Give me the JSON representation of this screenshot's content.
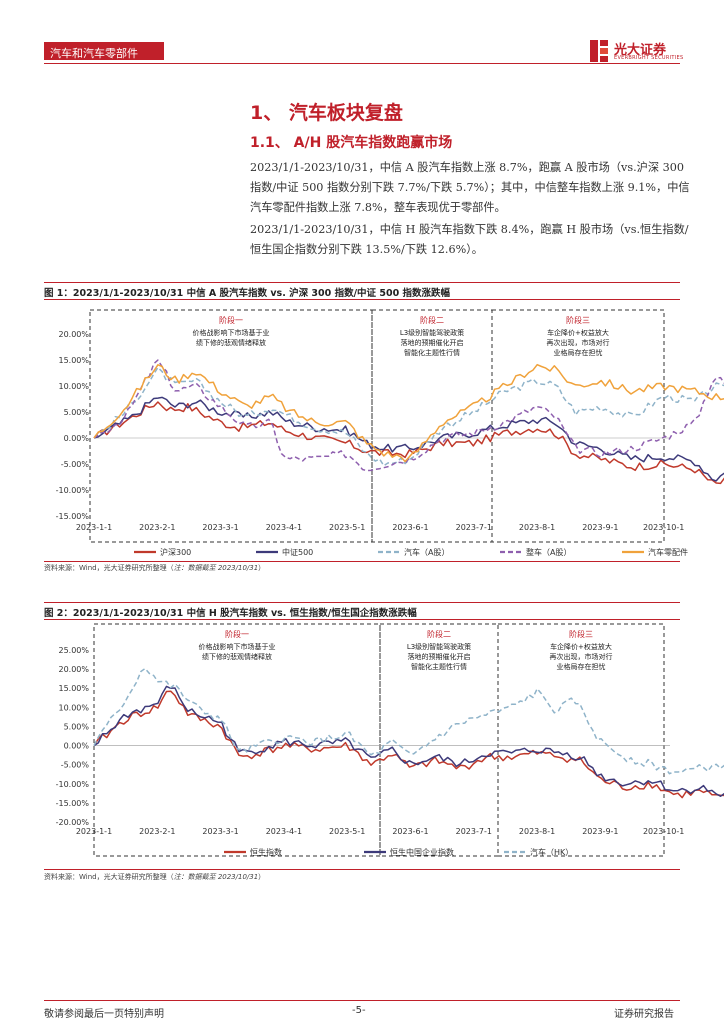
{
  "header": {
    "section_tag": "汽车和汽车零部件",
    "brand": "光大证券",
    "brand_sub": "EVERBRIGHT SECURITIES"
  },
  "heading1": "1、 汽车板块复盘",
  "heading2": "1.1、  A/H 股汽车指数跑赢市场",
  "paragraphs": [
    "2023/1/1-2023/10/31，中信 A 股汽车指数上涨 8.7%，跑赢 A 股市场（vs.沪深 300 指数/中证 500 指数分别下跌 7.7%/下跌 5.7%）；其中，中信整车指数上涨 9.1%，中信汽车零配件指数上涨 7.8%，整车表现优于零部件。",
    "2023/1/1-2023/10/31，中信 H 股汽车指数下跌 8.4%，跑赢 H 股市场（vs.恒生指数/恒生国企指数分别下跌 13.5%/下跌 12.6%）。"
  ],
  "fig1": {
    "title": "图 1：2023/1/1-2023/10/31 中信 A 股汽车指数 vs. 沪深 300 指数/中证 500 指数涨跌幅",
    "source": "资料来源：Wind，光大证券研究所整理（",
    "source_note": "注：数据截至 2023/10/31",
    "source_end": "）"
  },
  "fig2": {
    "title": "图 2：2023/1/1-2023/10/31 中信 H 股汽车指数 vs. 恒生指数/恒生国企指数涨跌幅",
    "source": "资料来源：Wind，光大证券研究所整理（",
    "source_note": "注：数据截至 2023/10/31",
    "source_end": "）"
  },
  "footer": {
    "left": "敬请参阅最后一页特别声明",
    "center": "-5-",
    "right": "证券研究报告"
  },
  "chart_data": [
    {
      "type": "line",
      "x_ticks": [
        "2023-1-1",
        "2023-2-1",
        "2023-3-1",
        "2023-4-1",
        "2023-5-1",
        "2023-6-1",
        "2023-7-1",
        "2023-8-1",
        "2023-9-1",
        "2023-10-1"
      ],
      "ylim": [
        -15,
        20
      ],
      "y_ticks": [
        "-15.00%",
        "-10.00%",
        "-5.00%",
        "0.00%",
        "5.00%",
        "10.00%",
        "15.00%",
        "20.00%"
      ],
      "stages": [
        {
          "title": "阶段一",
          "lines": [
            "价格战影响下市场基于业",
            "绩下修的悲观情绪释放"
          ]
        },
        {
          "title": "阶段二",
          "lines": [
            "L3级别智能驾驶政策",
            "落地的预期催化开启",
            "智能化主题性行情"
          ]
        },
        {
          "title": "阶段三",
          "lines": [
            "车企降价+权益放大",
            "再次出现，市场对行",
            "业格局存在担忧"
          ]
        }
      ],
      "legend": [
        "沪深300",
        "中证500",
        "汽车（A股）",
        "整车（A股）",
        "汽车零配件"
      ],
      "series": [
        {
          "name": "沪深300",
          "color": "#c0392b",
          "dash": "",
          "anchors": [
            [
              0,
              0
            ],
            [
              0.6,
              4
            ],
            [
              1.0,
              7
            ],
            [
              1.2,
              5.5
            ],
            [
              1.5,
              6
            ],
            [
              2.0,
              3
            ],
            [
              2.3,
              2
            ],
            [
              2.8,
              3
            ],
            [
              3.0,
              1.5
            ],
            [
              3.5,
              0
            ],
            [
              4.0,
              -1
            ],
            [
              4.3,
              -2.5
            ],
            [
              4.6,
              -3
            ],
            [
              5.0,
              -3
            ],
            [
              5.5,
              -1
            ],
            [
              6.0,
              -1
            ],
            [
              6.5,
              1
            ],
            [
              7.0,
              2
            ],
            [
              7.3,
              1
            ],
            [
              7.6,
              -3
            ],
            [
              8.0,
              -4
            ],
            [
              8.5,
              -5.5
            ],
            [
              9.0,
              -5
            ],
            [
              9.5,
              -6
            ],
            [
              9.8,
              -9
            ],
            [
              10.1,
              -7.7
            ]
          ]
        },
        {
          "name": "中证500",
          "color": "#3d3a7a",
          "dash": "",
          "anchors": [
            [
              0,
              0
            ],
            [
              0.6,
              4
            ],
            [
              1.0,
              8
            ],
            [
              1.3,
              6
            ],
            [
              1.6,
              7
            ],
            [
              2.0,
              5
            ],
            [
              2.4,
              4
            ],
            [
              2.8,
              5
            ],
            [
              3.1,
              3
            ],
            [
              3.5,
              2
            ],
            [
              4.0,
              1.5
            ],
            [
              4.3,
              -1
            ],
            [
              4.6,
              -2
            ],
            [
              5.0,
              -2
            ],
            [
              5.5,
              0
            ],
            [
              6.0,
              1
            ],
            [
              6.5,
              2.5
            ],
            [
              7.0,
              3.5
            ],
            [
              7.3,
              3
            ],
            [
              7.6,
              -1
            ],
            [
              8.0,
              -2
            ],
            [
              8.5,
              -4
            ],
            [
              9.0,
              -3.5
            ],
            [
              9.5,
              -4.5
            ],
            [
              9.8,
              -8
            ],
            [
              10.1,
              -5.7
            ]
          ]
        },
        {
          "name": "汽车（A股）",
          "color": "#8fb3c9",
          "dash": "5,3",
          "anchors": [
            [
              0,
              0
            ],
            [
              0.5,
              5
            ],
            [
              1.0,
              13
            ],
            [
              1.3,
              10
            ],
            [
              1.6,
              11
            ],
            [
              2.0,
              7
            ],
            [
              2.4,
              4
            ],
            [
              2.8,
              6
            ],
            [
              3.1,
              4
            ],
            [
              3.5,
              2
            ],
            [
              4.0,
              1
            ],
            [
              4.3,
              -3
            ],
            [
              4.6,
              -5
            ],
            [
              5.0,
              -4
            ],
            [
              5.5,
              2
            ],
            [
              6.0,
              5
            ],
            [
              6.5,
              9
            ],
            [
              7.0,
              11
            ],
            [
              7.3,
              10
            ],
            [
              7.6,
              5
            ],
            [
              8.0,
              6
            ],
            [
              8.5,
              4
            ],
            [
              9.0,
              8
            ],
            [
              9.5,
              7
            ],
            [
              9.8,
              10
            ],
            [
              10.1,
              8.7
            ]
          ]
        },
        {
          "name": "整车（A股）",
          "color": "#8e5fae",
          "dash": "5,3",
          "anchors": [
            [
              0,
              0
            ],
            [
              0.5,
              4
            ],
            [
              1.0,
              15
            ],
            [
              1.3,
              9
            ],
            [
              1.6,
              10
            ],
            [
              2.0,
              6
            ],
            [
              2.4,
              2
            ],
            [
              2.8,
              3
            ],
            [
              3.0,
              -4
            ],
            [
              3.5,
              -4
            ],
            [
              4.0,
              -3
            ],
            [
              4.3,
              -6
            ],
            [
              4.6,
              -5
            ],
            [
              5.0,
              -4
            ],
            [
              5.5,
              0
            ],
            [
              6.0,
              1
            ],
            [
              6.5,
              3
            ],
            [
              7.0,
              6
            ],
            [
              7.3,
              4
            ],
            [
              7.6,
              -2
            ],
            [
              8.0,
              -3
            ],
            [
              8.5,
              -2
            ],
            [
              9.0,
              0
            ],
            [
              9.5,
              3
            ],
            [
              9.8,
              12
            ],
            [
              10.1,
              9.1
            ]
          ]
        },
        {
          "name": "汽车零配件",
          "color": "#f0a23b",
          "dash": "",
          "anchors": [
            [
              0,
              0
            ],
            [
              0.5,
              6
            ],
            [
              1.0,
              14
            ],
            [
              1.3,
              11
            ],
            [
              1.6,
              13
            ],
            [
              2.0,
              9
            ],
            [
              2.4,
              6
            ],
            [
              2.8,
              8
            ],
            [
              3.1,
              5
            ],
            [
              3.5,
              3
            ],
            [
              4.0,
              3
            ],
            [
              4.3,
              -1
            ],
            [
              4.6,
              -3
            ],
            [
              5.0,
              -4
            ],
            [
              5.5,
              3
            ],
            [
              6.0,
              6
            ],
            [
              6.5,
              10
            ],
            [
              7.0,
              14
            ],
            [
              7.3,
              13
            ],
            [
              7.6,
              10
            ],
            [
              8.0,
              11
            ],
            [
              8.5,
              9
            ],
            [
              9.0,
              10
            ],
            [
              9.5,
              9
            ],
            [
              9.8,
              8
            ],
            [
              10.1,
              7.8
            ]
          ]
        }
      ]
    },
    {
      "type": "line",
      "x_ticks": [
        "2023-1-1",
        "2023-2-1",
        "2023-3-1",
        "2023-4-1",
        "2023-5-1",
        "2023-6-1",
        "2023-7-1",
        "2023-8-1",
        "2023-9-1",
        "2023-10-1"
      ],
      "ylim": [
        -20,
        25
      ],
      "y_ticks": [
        "-20.00%",
        "-15.00%",
        "-10.00%",
        "-5.00%",
        "0.00%",
        "5.00%",
        "10.00%",
        "15.00%",
        "20.00%",
        "25.00%"
      ],
      "stages": [
        {
          "title": "阶段一",
          "lines": [
            "价格战影响下市场基于业",
            "绩下修的悲观情绪释放"
          ]
        },
        {
          "title": "阶段二",
          "lines": [
            "L3级别智能驾驶政策",
            "落地的预期催化开启",
            "智能化主题性行情"
          ]
        },
        {
          "title": "阶段三",
          "lines": [
            "车企降价+权益放大",
            "再次出现，市场对行",
            "业格局存在担忧"
          ]
        }
      ],
      "legend": [
        "恒生指数",
        "恒生中国企业指数",
        "汽车（HK）"
      ],
      "series": [
        {
          "name": "恒生指数",
          "color": "#c0392b",
          "dash": "",
          "anchors": [
            [
              0,
              0
            ],
            [
              0.5,
              7
            ],
            [
              1.0,
              10
            ],
            [
              1.2,
              15
            ],
            [
              1.5,
              8
            ],
            [
              2.0,
              5
            ],
            [
              2.3,
              -3
            ],
            [
              2.6,
              -2
            ],
            [
              3.0,
              0
            ],
            [
              3.5,
              -1
            ],
            [
              4.0,
              0
            ],
            [
              4.4,
              -5
            ],
            [
              4.7,
              -2
            ],
            [
              5.0,
              -6
            ],
            [
              5.4,
              -4
            ],
            [
              5.8,
              -6
            ],
            [
              6.2,
              -3
            ],
            [
              6.6,
              -3
            ],
            [
              7.0,
              -2
            ],
            [
              7.4,
              -3
            ],
            [
              7.7,
              -4
            ],
            [
              8.0,
              -9
            ],
            [
              8.4,
              -11
            ],
            [
              8.8,
              -10
            ],
            [
              9.2,
              -13
            ],
            [
              9.6,
              -12
            ],
            [
              9.9,
              -14
            ],
            [
              10.1,
              -13.5
            ]
          ]
        },
        {
          "name": "恒生中国企业指数",
          "color": "#3d3a7a",
          "dash": "",
          "anchors": [
            [
              0,
              0
            ],
            [
              0.5,
              8
            ],
            [
              1.0,
              11
            ],
            [
              1.2,
              16
            ],
            [
              1.5,
              9
            ],
            [
              2.0,
              6
            ],
            [
              2.3,
              -2
            ],
            [
              2.6,
              -1
            ],
            [
              3.0,
              1
            ],
            [
              3.5,
              0
            ],
            [
              4.0,
              1
            ],
            [
              4.4,
              -4
            ],
            [
              4.7,
              -1
            ],
            [
              5.0,
              -5
            ],
            [
              5.4,
              -3
            ],
            [
              5.8,
              -5
            ],
            [
              6.2,
              -2
            ],
            [
              6.6,
              -2
            ],
            [
              7.0,
              -1
            ],
            [
              7.4,
              -2
            ],
            [
              7.7,
              -3
            ],
            [
              8.0,
              -8
            ],
            [
              8.4,
              -10
            ],
            [
              8.8,
              -9
            ],
            [
              9.2,
              -12
            ],
            [
              9.6,
              -11
            ],
            [
              9.9,
              -13
            ],
            [
              10.1,
              -12.6
            ]
          ]
        },
        {
          "name": "汽车（HK）",
          "color": "#8fb3c9",
          "dash": "5,3",
          "anchors": [
            [
              0,
              0
            ],
            [
              0.5,
              12
            ],
            [
              0.8,
              21
            ],
            [
              1.0,
              17
            ],
            [
              1.3,
              15
            ],
            [
              1.6,
              10
            ],
            [
              2.0,
              7
            ],
            [
              2.3,
              -2
            ],
            [
              2.6,
              0
            ],
            [
              3.0,
              2
            ],
            [
              3.5,
              1
            ],
            [
              4.0,
              3
            ],
            [
              4.4,
              -3
            ],
            [
              4.7,
              1
            ],
            [
              5.0,
              -3
            ],
            [
              5.4,
              2
            ],
            [
              5.8,
              6
            ],
            [
              6.2,
              8
            ],
            [
              6.6,
              10
            ],
            [
              7.0,
              14
            ],
            [
              7.3,
              9
            ],
            [
              7.6,
              12
            ],
            [
              8.0,
              1
            ],
            [
              8.4,
              -3
            ],
            [
              8.8,
              -5
            ],
            [
              9.2,
              -7
            ],
            [
              9.6,
              -6
            ],
            [
              9.9,
              -5
            ],
            [
              10.1,
              -8.4
            ]
          ]
        }
      ]
    }
  ]
}
